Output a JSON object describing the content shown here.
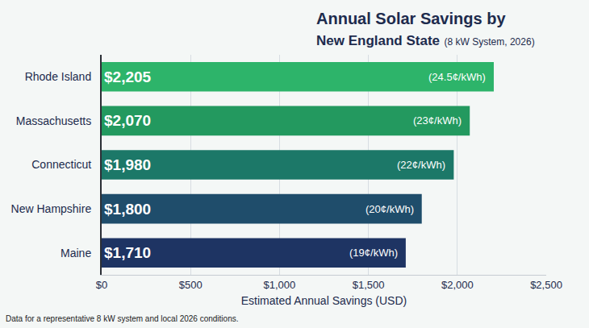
{
  "chart_data": {
    "type": "bar",
    "orientation": "horizontal",
    "title": "Annual Solar Savings by New England State",
    "subtitle": "(8 kW System, 2026)",
    "categories": [
      "Rhode Island",
      "Massachusetts",
      "Connecticut",
      "New Hampshire",
      "Maine"
    ],
    "values": [
      2205,
      2070,
      1980,
      1800,
      1710
    ],
    "value_labels": [
      "$2,205",
      "$2,070",
      "$1,980",
      "$1,800",
      "$1,710"
    ],
    "rate_labels": [
      "(24.5¢/kWh)",
      "(23¢/kWh)",
      "(22¢/kWh)",
      "(20¢/kWh)",
      "(19¢/kWh)"
    ],
    "colors": [
      "#2db46a",
      "#23995f",
      "#1c7868",
      "#1f4d6b",
      "#1e3463"
    ],
    "data_labels": true,
    "xlabel": "Estimated Annual Savings (USD)",
    "xlim": [
      0,
      2500
    ],
    "xticks": [
      {
        "value": 0,
        "label": "$0"
      },
      {
        "value": 500,
        "label": "$500"
      },
      {
        "value": 1000,
        "label": "$1,000"
      },
      {
        "value": 1500,
        "label": "$1,500"
      },
      {
        "value": 2000,
        "label": "$2,000"
      },
      {
        "value": 2500,
        "label": "$2,500"
      }
    ],
    "grid": true,
    "footnote": "Data for a representative 8 kW system and local 2026 conditions."
  }
}
